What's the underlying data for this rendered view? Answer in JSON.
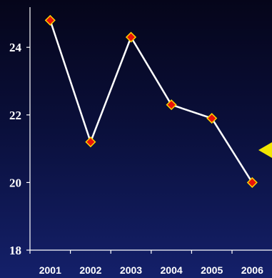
{
  "chart_data": {
    "type": "line",
    "x": [
      "2001",
      "2002",
      "2003",
      "2004",
      "2005",
      "2006"
    ],
    "values": [
      24.8,
      21.2,
      24.3,
      22.3,
      21.9,
      20.0
    ],
    "yticks": [
      18,
      20,
      22,
      24
    ],
    "ylim": [
      18,
      25.4
    ],
    "grid": false,
    "colors": {
      "line": "#ffffff",
      "marker_fill": "#e8140a",
      "marker_stroke": "#ffd400",
      "axis": "#ffffff",
      "pointer": "#f2e600"
    }
  }
}
